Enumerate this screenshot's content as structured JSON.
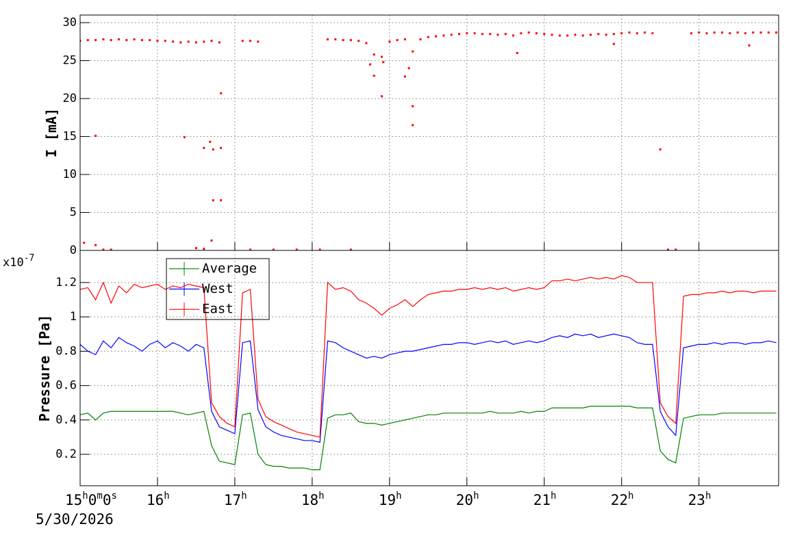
{
  "chart_data": [
    {
      "type": "scatter",
      "y_label": "I [mA]",
      "color": "#ff0000",
      "grid": true,
      "xlim": [
        15,
        24.03
      ],
      "ylim": [
        0,
        31
      ],
      "yticks": [
        0,
        5,
        10,
        15,
        20,
        25,
        30
      ],
      "x": [
        15.0,
        15.1,
        15.2,
        15.3,
        15.4,
        15.5,
        15.6,
        15.7,
        15.8,
        15.9,
        16.0,
        16.1,
        16.2,
        16.3,
        16.4,
        16.5,
        16.6,
        16.7,
        16.8,
        17.1,
        17.2,
        17.3,
        18.2,
        18.3,
        18.4,
        18.5,
        18.6,
        18.7,
        18.8,
        18.9,
        19.0,
        19.1,
        19.2,
        19.3,
        19.4,
        19.5,
        19.6,
        19.7,
        19.8,
        19.9,
        20.0,
        20.1,
        20.2,
        20.3,
        20.4,
        20.5,
        20.6,
        20.7,
        20.8,
        20.9,
        21.0,
        21.1,
        21.2,
        21.3,
        21.4,
        21.5,
        21.6,
        21.7,
        21.8,
        21.9,
        22.0,
        22.1,
        22.2,
        22.3,
        22.4,
        22.9,
        23.0,
        23.1,
        23.2,
        23.3,
        23.4,
        23.5,
        23.6,
        23.7,
        23.8,
        23.9,
        24.0,
        15.2,
        15.05,
        15.2,
        15.3,
        15.4,
        16.35,
        16.6,
        16.68,
        16.72,
        16.82,
        16.72,
        16.82,
        16.82,
        16.7,
        16.5,
        16.6,
        17.2,
        17.5,
        17.8,
        18.1,
        18.5,
        18.8,
        18.75,
        18.9,
        18.92,
        19.3,
        19.3,
        19.2,
        19.25,
        20.65,
        21.9,
        23.65,
        22.5,
        22.6,
        22.7
      ],
      "values": [
        27.6,
        27.7,
        27.7,
        27.8,
        27.7,
        27.8,
        27.7,
        27.8,
        27.7,
        27.7,
        27.6,
        27.6,
        27.5,
        27.4,
        27.5,
        27.4,
        27.5,
        27.6,
        27.4,
        27.6,
        27.6,
        27.5,
        27.8,
        27.8,
        27.7,
        27.7,
        27.6,
        27.3,
        25.8,
        25.5,
        27.5,
        27.7,
        27.8,
        26.2,
        27.8,
        28.1,
        28.2,
        28.3,
        28.4,
        28.5,
        28.6,
        28.6,
        28.5,
        28.5,
        28.4,
        28.5,
        28.3,
        28.6,
        28.7,
        28.6,
        28.5,
        28.4,
        28.3,
        28.3,
        28.4,
        28.3,
        28.4,
        28.5,
        28.4,
        28.5,
        28.6,
        28.7,
        28.6,
        28.7,
        28.6,
        28.6,
        28.7,
        28.6,
        28.7,
        28.7,
        28.6,
        28.7,
        28.6,
        28.7,
        28.7,
        28.7,
        28.7,
        15.1,
        1.0,
        0.7,
        0.1,
        0.1,
        14.9,
        13.5,
        14.3,
        13.3,
        13.5,
        6.6,
        6.6,
        20.7,
        1.3,
        0.3,
        0.2,
        0.1,
        0.1,
        0.1,
        0.1,
        0.1,
        23.0,
        24.5,
        20.3,
        24.8,
        19.0,
        16.5,
        22.9,
        24.0,
        26.0,
        27.2,
        27.0,
        13.3,
        0.1,
        0.1
      ]
    },
    {
      "type": "line",
      "y_label": "Pressure [Pa]",
      "y_multiplier": {
        "base": "x10",
        "exponent": "-7"
      },
      "x_date_label": "5/30/2026",
      "grid": true,
      "legend": "top-left",
      "xlim": [
        15,
        24.03
      ],
      "ylim": [
        0.017,
        1.387
      ],
      "yticks": [
        0.2,
        0.4,
        0.6,
        0.8,
        1,
        1.2
      ],
      "xticks": [
        {
          "value": 15,
          "label": "15h0m0s"
        },
        {
          "value": 16,
          "label": "16h"
        },
        {
          "value": 17,
          "label": "17h"
        },
        {
          "value": 18,
          "label": "18h"
        },
        {
          "value": 19,
          "label": "19h"
        },
        {
          "value": 20,
          "label": "20h"
        },
        {
          "value": 21,
          "label": "21h"
        },
        {
          "value": 22,
          "label": "22h"
        },
        {
          "value": 23,
          "label": "23h"
        }
      ],
      "x": [
        15.0,
        15.1,
        15.2,
        15.3,
        15.4,
        15.5,
        15.6,
        15.7,
        15.8,
        15.9,
        16.0,
        16.1,
        16.2,
        16.3,
        16.4,
        16.5,
        16.6,
        16.7,
        16.8,
        16.9,
        17.0,
        17.1,
        17.2,
        17.3,
        17.4,
        17.5,
        17.6,
        17.7,
        17.8,
        17.9,
        18.0,
        18.1,
        18.2,
        18.3,
        18.4,
        18.5,
        18.6,
        18.7,
        18.8,
        18.9,
        19.0,
        19.1,
        19.2,
        19.3,
        19.4,
        19.5,
        19.6,
        19.7,
        19.8,
        19.9,
        20.0,
        20.1,
        20.2,
        20.3,
        20.4,
        20.5,
        20.6,
        20.7,
        20.8,
        20.9,
        21.0,
        21.1,
        21.2,
        21.3,
        21.4,
        21.5,
        21.6,
        21.7,
        21.8,
        21.9,
        22.0,
        22.1,
        22.2,
        22.3,
        22.4,
        22.5,
        22.6,
        22.7,
        22.8,
        22.9,
        23.0,
        23.1,
        23.2,
        23.3,
        23.4,
        23.5,
        23.6,
        23.7,
        23.8,
        23.9,
        24.0
      ],
      "series": [
        {
          "name": "Average",
          "color": "#008000",
          "values": [
            0.43,
            0.44,
            0.4,
            0.44,
            0.45,
            0.45,
            0.45,
            0.45,
            0.45,
            0.45,
            0.45,
            0.45,
            0.45,
            0.44,
            0.43,
            0.44,
            0.45,
            0.25,
            0.16,
            0.15,
            0.14,
            0.43,
            0.44,
            0.2,
            0.14,
            0.13,
            0.13,
            0.12,
            0.12,
            0.12,
            0.11,
            0.11,
            0.41,
            0.43,
            0.43,
            0.44,
            0.39,
            0.38,
            0.38,
            0.37,
            0.38,
            0.39,
            0.4,
            0.41,
            0.42,
            0.43,
            0.43,
            0.44,
            0.44,
            0.44,
            0.44,
            0.44,
            0.44,
            0.45,
            0.44,
            0.44,
            0.44,
            0.45,
            0.44,
            0.45,
            0.45,
            0.47,
            0.47,
            0.47,
            0.47,
            0.47,
            0.48,
            0.48,
            0.48,
            0.48,
            0.48,
            0.48,
            0.47,
            0.47,
            0.47,
            0.22,
            0.17,
            0.15,
            0.41,
            0.42,
            0.43,
            0.43,
            0.43,
            0.44,
            0.44,
            0.44,
            0.44,
            0.44,
            0.44,
            0.44,
            0.44
          ]
        },
        {
          "name": "West",
          "color": "#0000ff",
          "values": [
            0.84,
            0.8,
            0.78,
            0.86,
            0.82,
            0.88,
            0.85,
            0.83,
            0.8,
            0.84,
            0.86,
            0.82,
            0.85,
            0.83,
            0.8,
            0.84,
            0.82,
            0.45,
            0.36,
            0.34,
            0.32,
            0.85,
            0.86,
            0.46,
            0.36,
            0.33,
            0.31,
            0.3,
            0.29,
            0.28,
            0.28,
            0.27,
            0.86,
            0.85,
            0.82,
            0.8,
            0.78,
            0.76,
            0.77,
            0.76,
            0.78,
            0.79,
            0.8,
            0.8,
            0.81,
            0.82,
            0.83,
            0.84,
            0.84,
            0.85,
            0.85,
            0.84,
            0.85,
            0.86,
            0.85,
            0.86,
            0.84,
            0.85,
            0.86,
            0.85,
            0.86,
            0.88,
            0.89,
            0.88,
            0.9,
            0.89,
            0.9,
            0.88,
            0.89,
            0.9,
            0.89,
            0.88,
            0.85,
            0.84,
            0.84,
            0.45,
            0.36,
            0.31,
            0.82,
            0.83,
            0.84,
            0.84,
            0.85,
            0.84,
            0.85,
            0.85,
            0.84,
            0.85,
            0.85,
            0.86,
            0.85
          ]
        },
        {
          "name": "East",
          "color": "#ff0000",
          "values": [
            1.16,
            1.17,
            1.1,
            1.2,
            1.08,
            1.18,
            1.14,
            1.19,
            1.17,
            1.18,
            1.19,
            1.16,
            1.18,
            1.17,
            1.19,
            1.18,
            1.17,
            0.5,
            0.42,
            0.38,
            0.36,
            1.14,
            1.16,
            0.52,
            0.42,
            0.39,
            0.37,
            0.35,
            0.33,
            0.32,
            0.31,
            0.3,
            1.2,
            1.16,
            1.17,
            1.15,
            1.1,
            1.08,
            1.05,
            1.01,
            1.05,
            1.07,
            1.1,
            1.06,
            1.1,
            1.13,
            1.14,
            1.15,
            1.15,
            1.16,
            1.16,
            1.17,
            1.16,
            1.17,
            1.16,
            1.17,
            1.15,
            1.16,
            1.17,
            1.16,
            1.17,
            1.21,
            1.21,
            1.22,
            1.21,
            1.22,
            1.23,
            1.22,
            1.23,
            1.22,
            1.24,
            1.23,
            1.2,
            1.2,
            1.2,
            0.5,
            0.42,
            0.38,
            1.12,
            1.13,
            1.13,
            1.14,
            1.14,
            1.15,
            1.14,
            1.15,
            1.15,
            1.14,
            1.15,
            1.15,
            1.15
          ]
        }
      ]
    }
  ]
}
